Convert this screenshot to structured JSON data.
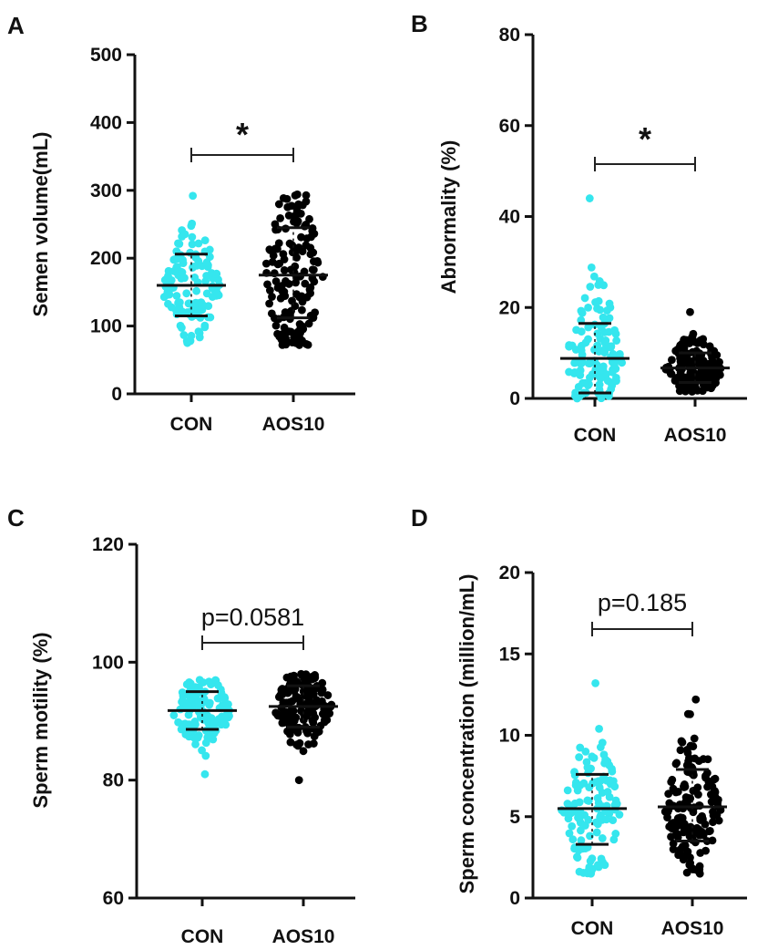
{
  "colors": {
    "con": "#35e6ee",
    "aos": "#000000",
    "axis": "#111111"
  },
  "chart_data": [
    {
      "type": "scatter",
      "panel_label": "A",
      "ylabel": "Semen volume(mL)",
      "ylim": [
        0,
        500
      ],
      "yticks": [
        "0",
        "100",
        "200",
        "300",
        "400",
        "500"
      ],
      "categories": [
        "CON",
        "AOS10"
      ],
      "series": [
        {
          "name": "CON",
          "n": 120,
          "min": 75,
          "max": 292,
          "mean": 160,
          "sd_low": 115,
          "sd_high": 206
        },
        {
          "name": "AOS10",
          "n": 150,
          "min": 72,
          "max": 294,
          "mean": 175,
          "sd_low": 112,
          "sd_high": 245
        }
      ],
      "annotation": "*"
    },
    {
      "type": "scatter",
      "panel_label": "B",
      "ylabel": "Abnormality (%)",
      "ylim": [
        0,
        80
      ],
      "yticks": [
        "0",
        "20",
        "40",
        "60",
        "80"
      ],
      "categories": [
        "CON",
        "AOS10"
      ],
      "series": [
        {
          "name": "CON",
          "n": 120,
          "min": 0,
          "max": 44,
          "mean": 8.8,
          "sd_low": 1.2,
          "sd_high": 16.5
        },
        {
          "name": "AOS10",
          "n": 150,
          "min": 1.5,
          "max": 19,
          "mean": 6.7,
          "sd_low": 3.5,
          "sd_high": 10
        }
      ],
      "annotation": "*"
    },
    {
      "type": "scatter",
      "panel_label": "C",
      "ylabel": "Sperm motility (%)",
      "ylim": [
        60,
        120
      ],
      "yticks": [
        "60",
        "80",
        "100",
        "120"
      ],
      "categories": [
        "CON",
        "AOS10"
      ],
      "series": [
        {
          "name": "CON",
          "n": 120,
          "min": 81,
          "max": 97,
          "mean": 91.8,
          "sd_low": 88.6,
          "sd_high": 95
        },
        {
          "name": "AOS10",
          "n": 150,
          "min": 80,
          "max": 98,
          "mean": 92.5,
          "sd_low": 89,
          "sd_high": 96
        }
      ],
      "annotation": "p=0.0581"
    },
    {
      "type": "scatter",
      "panel_label": "D",
      "ylabel": "Sperm concentration (million/mL)",
      "ylim": [
        0,
        20
      ],
      "yticks": [
        "0",
        "5",
        "10",
        "15",
        "20"
      ],
      "categories": [
        "CON",
        "AOS10"
      ],
      "series": [
        {
          "name": "CON",
          "n": 120,
          "min": 1.5,
          "max": 13.2,
          "mean": 5.5,
          "sd_low": 3.3,
          "sd_high": 7.6
        },
        {
          "name": "AOS10",
          "n": 150,
          "min": 1.5,
          "max": 12.2,
          "mean": 5.6,
          "sd_low": 3.5,
          "sd_high": 7.9
        }
      ],
      "annotation": "p=0.185"
    }
  ]
}
